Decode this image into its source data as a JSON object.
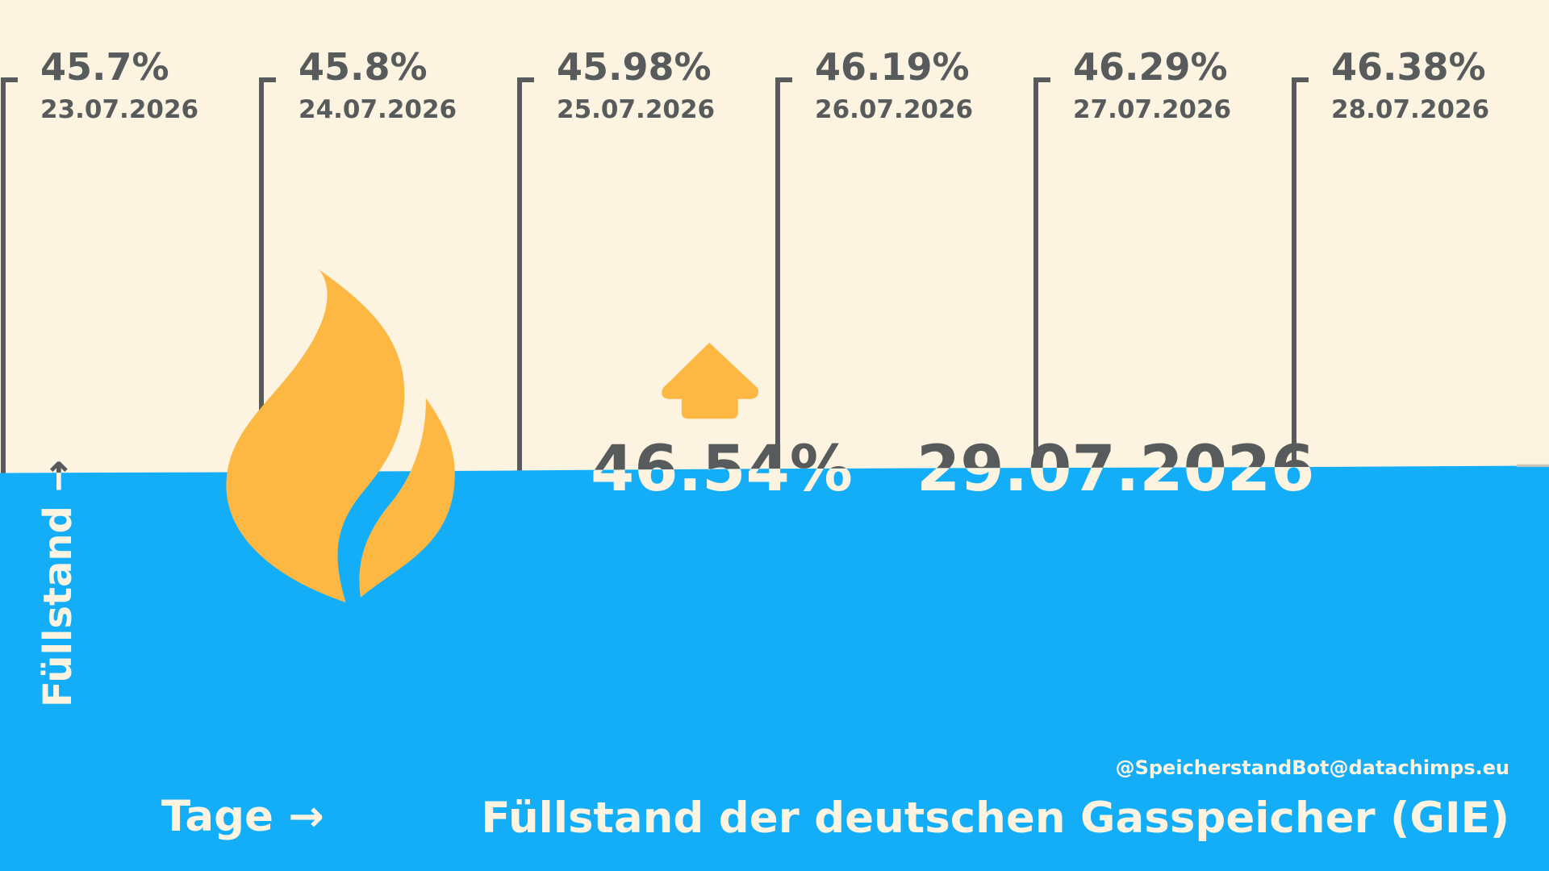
{
  "chart_data": {
    "type": "area",
    "title": "Füllstand der deutschen Gasspeicher (GIE)",
    "x_label": "Tage →",
    "y_label": "Füllstand →",
    "credit": "@SpeicherstandBot@datachimps.eu",
    "x": [
      "23.07.2026",
      "24.07.2026",
      "25.07.2026",
      "26.07.2026",
      "27.07.2026",
      "28.07.2026",
      "29.07.2026"
    ],
    "values": [
      45.7,
      45.8,
      45.98,
      46.19,
      46.29,
      46.38,
      46.54
    ],
    "value_labels": [
      "45.7%",
      "45.8%",
      "45.98%",
      "46.19%",
      "46.29%",
      "46.38%",
      "46.54%"
    ],
    "ylim": [
      0,
      100
    ],
    "color": "#14aef8"
  }
}
